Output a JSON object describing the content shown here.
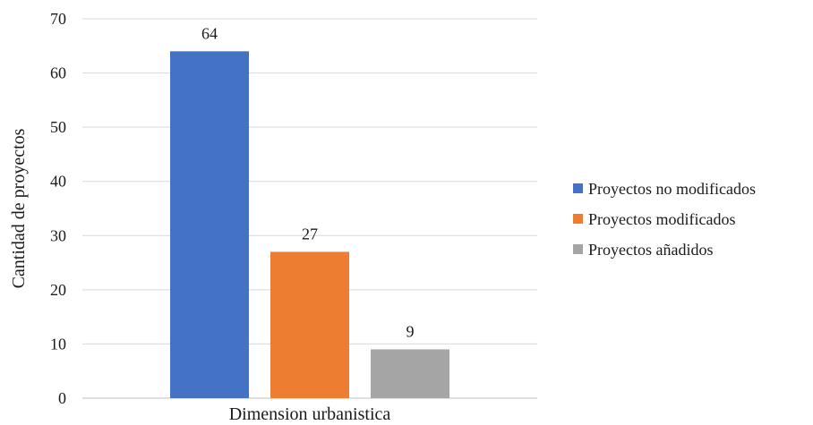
{
  "chart_data": {
    "type": "bar",
    "title": "",
    "xlabel": "Dimension urbanistica",
    "ylabel": "Cantidad de proyectos",
    "ylim": [
      0,
      70
    ],
    "yticks": [
      0,
      10,
      20,
      30,
      40,
      50,
      60,
      70
    ],
    "categories": [
      "Dimension urbanistica"
    ],
    "series": [
      {
        "name": "Proyectos no modificados",
        "values": [
          64
        ],
        "color": "#4472C4"
      },
      {
        "name": "Proyectos modificados",
        "values": [
          27
        ],
        "color": "#ED7D31"
      },
      {
        "name": "Proyectos añadidos",
        "values": [
          9
        ],
        "color": "#A5A5A5"
      }
    ],
    "data_labels": [
      "64",
      "27",
      "9"
    ],
    "grid": true,
    "legend_position": "right"
  }
}
